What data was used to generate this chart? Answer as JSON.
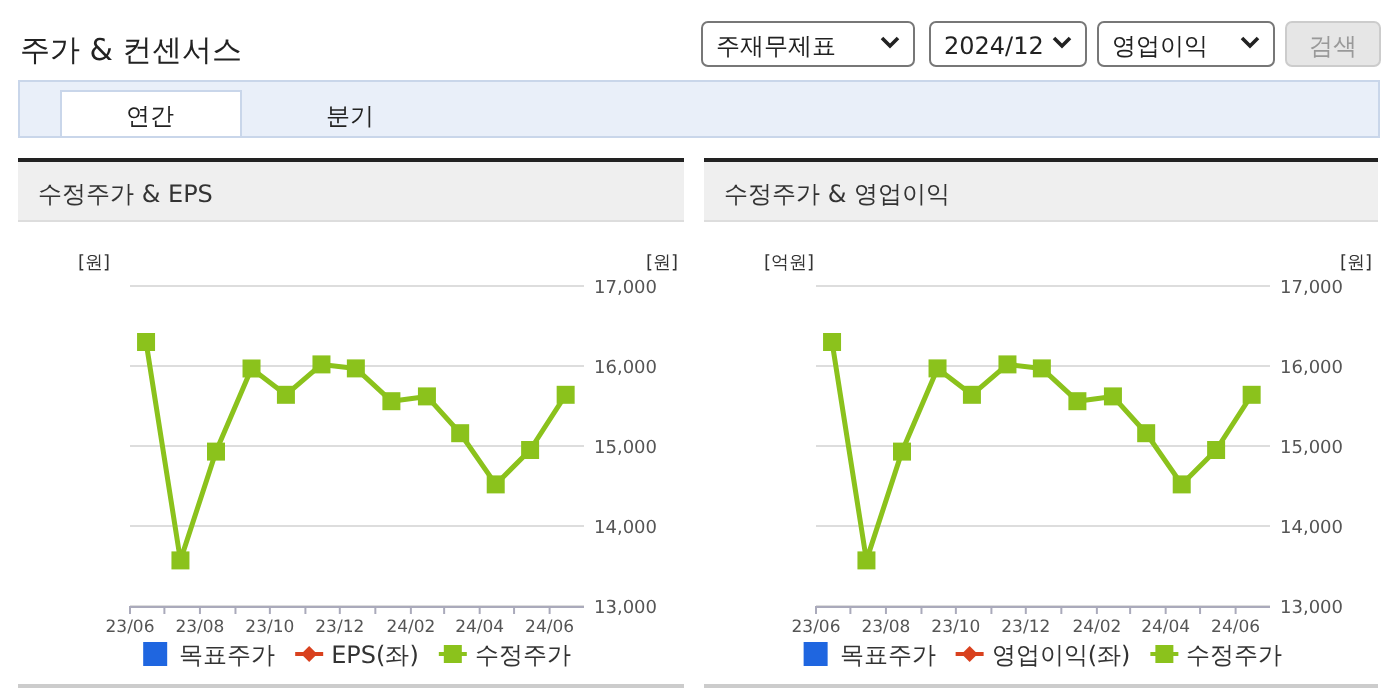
{
  "chart_data": [
    {
      "type": "other",
      "title": "주가 & 컨센서스",
      "annotations": [
        "주재무제표",
        "2024/12",
        "영업이익",
        "검색",
        "연간",
        "분기"
      ]
    },
    {
      "type": "line",
      "title": "수정주가 & EPS",
      "ylabel": "[원]",
      "y2label": "[원]",
      "x": [
        "2023-06-15",
        "2023-07-15",
        "2023-08-15",
        "2023-09-15",
        "2023-10-15",
        "2023-11-15",
        "2023-12-15",
        "2024-01-15",
        "2024-02-15",
        "2024-03-15",
        "2024-04-15",
        "2024-05-15",
        "2024-06-15"
      ],
      "series": [
        {
          "name": "목표주가",
          "type": "bar",
          "color": "#1f66e0",
          "values": [
            null,
            null,
            null,
            null,
            null,
            null,
            null,
            null,
            null,
            null,
            null,
            null,
            null
          ]
        },
        {
          "name": "EPS(좌)",
          "type": "line",
          "marker": "diamond",
          "color": "#d9411e",
          "values": [
            null,
            null,
            null,
            null,
            null,
            null,
            null,
            null,
            null,
            null,
            null,
            null,
            null
          ]
        },
        {
          "name": "수정주가",
          "type": "line",
          "marker": "square",
          "axis": "y2",
          "color": "#8bc21c",
          "values": [
            16300,
            13570,
            14930,
            15970,
            15640,
            16020,
            15970,
            15560,
            15620,
            15160,
            14520,
            14950,
            15640
          ]
        }
      ],
      "xlim": [
        "2023-06-01",
        "2024-07-01"
      ],
      "xticks": [
        {
          "value": "2023-06-01",
          "label": "23/06"
        },
        {
          "value": "2023-07-01",
          "label": null
        },
        {
          "value": "2023-08-01",
          "label": "23/08"
        },
        {
          "value": "2023-09-01",
          "label": null
        },
        {
          "value": "2023-10-01",
          "label": "23/10"
        },
        {
          "value": "2023-11-01",
          "label": null
        },
        {
          "value": "2023-12-01",
          "label": "23/12"
        },
        {
          "value": "2024-01-01",
          "label": null
        },
        {
          "value": "2024-02-01",
          "label": "24/02"
        },
        {
          "value": "2024-03-01",
          "label": null
        },
        {
          "value": "2024-04-01",
          "label": "24/04"
        },
        {
          "value": "2024-05-01",
          "label": null
        },
        {
          "value": "2024-06-01",
          "label": "24/06"
        }
      ],
      "y2lim": [
        13000,
        17000
      ],
      "y2ticks": [
        {
          "value": 13000,
          "label": "13,000"
        },
        {
          "value": 14000,
          "label": "14,000"
        },
        {
          "value": 15000,
          "label": "15,000"
        },
        {
          "value": 16000,
          "label": "16,000"
        },
        {
          "value": 17000,
          "label": "17,000"
        }
      ],
      "grid": "y",
      "legend": "bottom"
    },
    {
      "type": "line",
      "title": "수정주가 & 영업이익",
      "ylabel": "[억원]",
      "y2label": "[원]",
      "x": [
        "2023-06-15",
        "2023-07-15",
        "2023-08-15",
        "2023-09-15",
        "2023-10-15",
        "2023-11-15",
        "2023-12-15",
        "2024-01-15",
        "2024-02-15",
        "2024-03-15",
        "2024-04-15",
        "2024-05-15",
        "2024-06-15"
      ],
      "series": [
        {
          "name": "목표주가",
          "type": "bar",
          "color": "#1f66e0",
          "values": [
            null,
            null,
            null,
            null,
            null,
            null,
            null,
            null,
            null,
            null,
            null,
            null,
            null
          ]
        },
        {
          "name": "영업이익(좌)",
          "type": "line",
          "marker": "diamond",
          "color": "#d9411e",
          "values": [
            null,
            null,
            null,
            null,
            null,
            null,
            null,
            null,
            null,
            null,
            null,
            null,
            null
          ]
        },
        {
          "name": "수정주가",
          "type": "line",
          "marker": "square",
          "axis": "y2",
          "color": "#8bc21c",
          "values": [
            16300,
            13570,
            14930,
            15970,
            15640,
            16020,
            15970,
            15560,
            15620,
            15160,
            14520,
            14950,
            15640
          ]
        }
      ],
      "xlim": [
        "2023-06-01",
        "2024-07-01"
      ],
      "xticks": [
        {
          "value": "2023-06-01",
          "label": "23/06"
        },
        {
          "value": "2023-07-01",
          "label": null
        },
        {
          "value": "2023-08-01",
          "label": "23/08"
        },
        {
          "value": "2023-09-01",
          "label": null
        },
        {
          "value": "2023-10-01",
          "label": "23/10"
        },
        {
          "value": "2023-11-01",
          "label": null
        },
        {
          "value": "2023-12-01",
          "label": "23/12"
        },
        {
          "value": "2024-01-01",
          "label": null
        },
        {
          "value": "2024-02-01",
          "label": "24/02"
        },
        {
          "value": "2024-03-01",
          "label": null
        },
        {
          "value": "2024-04-01",
          "label": "24/04"
        },
        {
          "value": "2024-05-01",
          "label": null
        },
        {
          "value": "2024-06-01",
          "label": "24/06"
        }
      ],
      "y2lim": [
        13000,
        17000
      ],
      "y2ticks": [
        {
          "value": 13000,
          "label": "13,000"
        },
        {
          "value": 14000,
          "label": "14,000"
        },
        {
          "value": 15000,
          "label": "15,000"
        },
        {
          "value": 16000,
          "label": "16,000"
        },
        {
          "value": 17000,
          "label": "17,000"
        }
      ],
      "grid": "y",
      "legend": "bottom"
    }
  ]
}
